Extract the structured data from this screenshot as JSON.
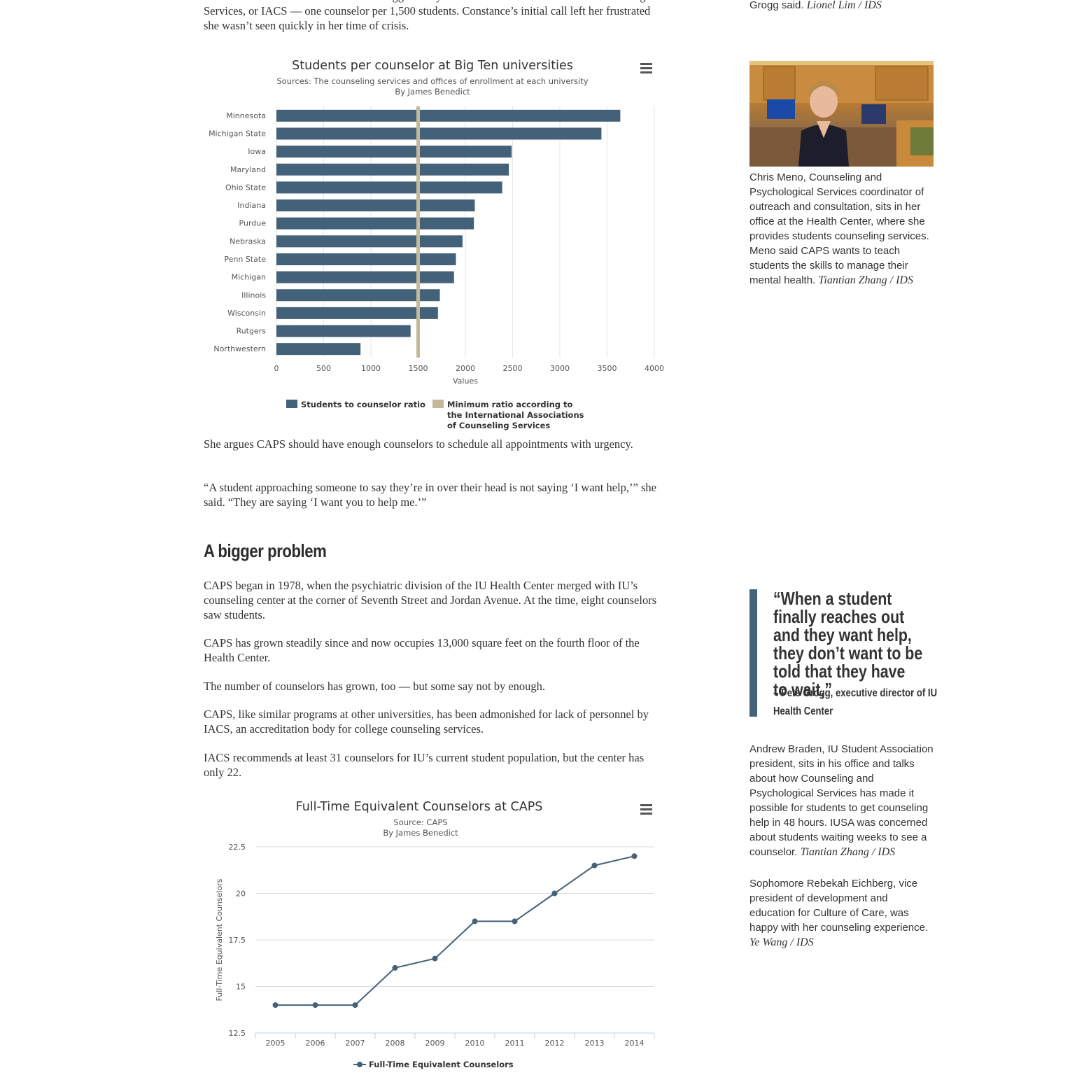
{
  "article": {
    "intro_para": "counselors to meet the minimum ratio suggested by the International Association of Counseling Services, or IACS — one counselor per 1,500 students. Constance’s initial call left her frustrated she wasn’t seen quickly in her time of crisis.",
    "para_urgency": "She argues CAPS should have enough counselors to schedule all appointments with urgency.",
    "para_quote": "“A student approaching someone to say they’re in over their head is not saying ‘I want help,’” she said. “They are saying ‘I want you to help me.’”",
    "heading": "A bigger problem",
    "para_1978": "CAPS began in 1978, when the psychiatric division of the IU Health Center merged with IU’s counseling center at the corner of Seventh Street and Jordan Avenue. At the time, eight counselors saw students.",
    "para_grown": "CAPS has grown steadily since and now occupies 13,000 square feet on the fourth floor of the Health Center.",
    "para_number": "The number of counselors has grown, too — but some say not by enough.",
    "para_admonished": "CAPS, like similar programs at other universities, has been admonished for lack of personnel by IACS, an accreditation body for college counseling services.",
    "para_iacs": "IACS recommends at least 31 counselors for IU’s current student population, but the center has only 22."
  },
  "sidebar": {
    "top_caption_text": "Grogg said.",
    "top_caption_credit": "Lionel Lim / IDS",
    "photo_caption_text": "Chris Meno, Counseling and Psychological Services coordinator of outreach and consultation, sits in her office at the Health Center, where she provides students counseling services. Meno said CAPS wants to teach students the skills to manage their mental health.",
    "photo_caption_credit": "Tiantian Zhang / IDS",
    "pullquote": "“When a student finally reaches out and they want help, they don’t want to be told that they have to wait,”",
    "pullquote_attr": "– Pete Grogg, executive director of IU Health Center",
    "braden_text": "Andrew Braden, IU Student Association president, sits in his office and talks about how Counseling and Psychological Services has made it possible for students to get counseling help in 48 hours. IUSA was concerned about students waiting weeks to see a counselor.",
    "braden_credit": "Tiantian Zhang / IDS",
    "eichberg_text": "Sophomore Rebekah Eichberg, vice president of development and education for Culture of Care, was happy with her counseling experience.",
    "eichberg_credit": "Ye Wang / IDS"
  },
  "chart_data": [
    {
      "type": "bar",
      "orientation": "horizontal",
      "title": "Students per counselor at Big Ten universities",
      "subtitle": "Sources: The counseling services and offices of enrollment at each university",
      "byline": "By James Benedict",
      "xlabel": "Values",
      "xlim": [
        0,
        4000
      ],
      "x_ticks": [
        "0",
        "500",
        "1000",
        "1500",
        "2000",
        "2500",
        "3000",
        "3500",
        "4000"
      ],
      "categories": [
        "Minnesota",
        "Michigan State",
        "Iowa",
        "Maryland",
        "Ohio State",
        "Indiana",
        "Purdue",
        "Nebraska",
        "Penn State",
        "Michigan",
        "Illinois",
        "Wisconsin",
        "Rutgers",
        "Northwestern"
      ],
      "series": [
        {
          "name": "Students to counselor ratio",
          "color": "#44617a",
          "values": [
            3640,
            3440,
            2490,
            2460,
            2390,
            2100,
            2090,
            1970,
            1900,
            1880,
            1730,
            1710,
            1420,
            890
          ]
        }
      ],
      "reference_line": {
        "name": "Minimum ratio according to the International Associations of Counseling Services",
        "value": 1500,
        "color": "#c4b99a"
      },
      "legend_labels": [
        "Students to counselor ratio",
        "Minimum ratio according to",
        "the International Associations",
        "of Counseling Services"
      ],
      "legend_placement": "bottom",
      "grid": true
    },
    {
      "type": "line",
      "title": "Full-Time Equivalent Counselors at CAPS",
      "subtitle": "Source: CAPS",
      "byline": "By James Benedict",
      "ylabel": "Full-Time Equivalent Counselors",
      "ylim": [
        12.5,
        22.5
      ],
      "y_ticks": [
        "22.5",
        "20",
        "17.5",
        "15",
        "12.5"
      ],
      "x": [
        "2005",
        "2006",
        "2007",
        "2008",
        "2009",
        "2010",
        "2011",
        "2012",
        "2013",
        "2014"
      ],
      "series": [
        {
          "name": "Full-Time Equivalent Counselors",
          "color": "#44617a",
          "values": [
            14,
            14,
            14,
            16,
            16.5,
            18.5,
            18.5,
            20,
            21.5,
            22
          ]
        }
      ],
      "legend_placement": "bottom",
      "grid": true
    }
  ],
  "colors": {
    "bar": "#44617a",
    "reference": "#c4b99a",
    "pullquote_bar": "#44617a"
  },
  "icons": {
    "chart_menu": "hamburger-menu-icon"
  }
}
